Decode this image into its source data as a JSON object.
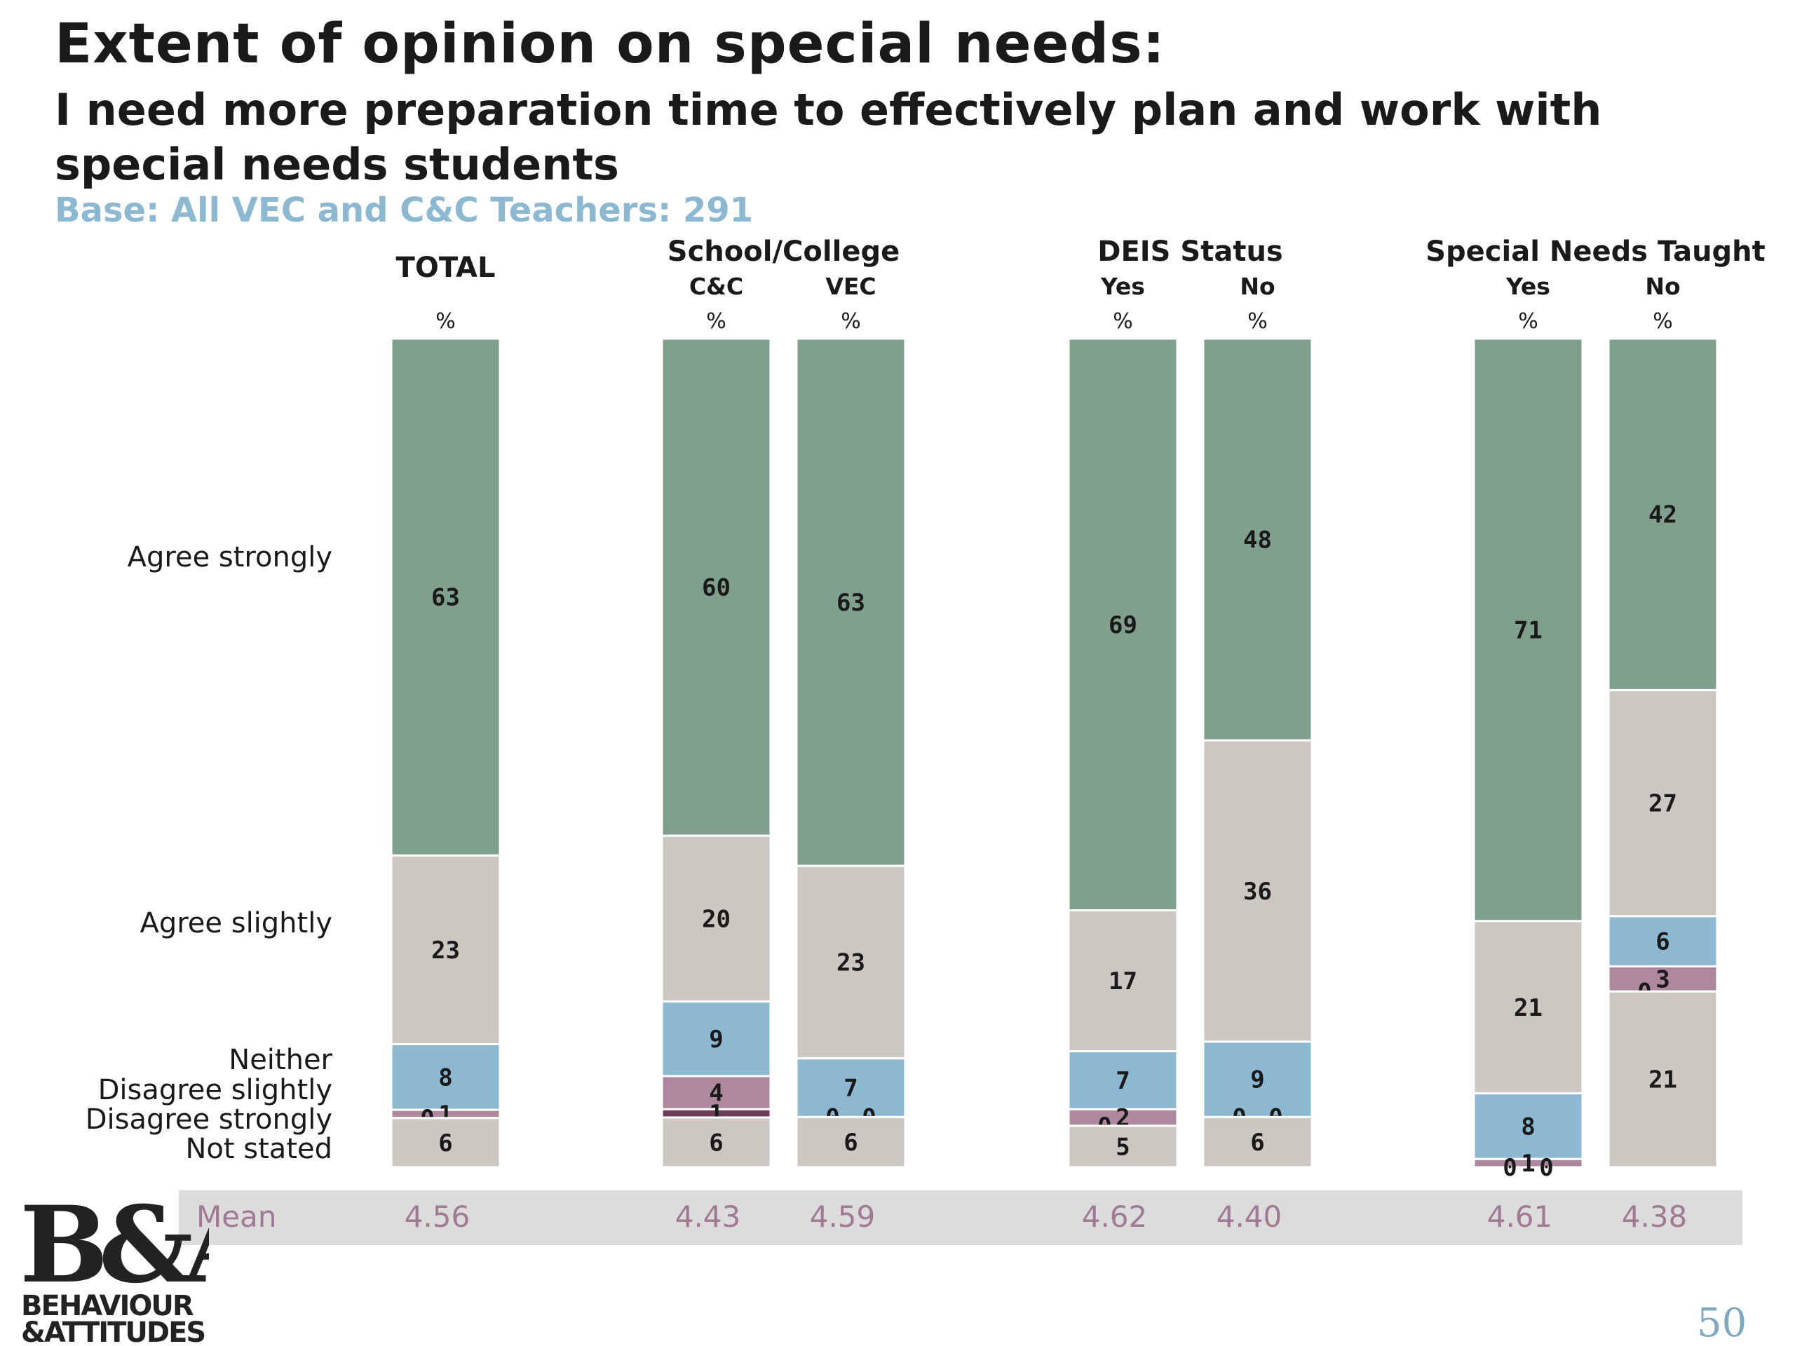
{
  "title": "Extent of opinion on special needs:",
  "subtitle": "I need more preparation time to effectively plan and work with special needs students",
  "base": "Base: All VEC and C&C Teachers: 291",
  "page_number": "50",
  "logo": {
    "line1": "B&A",
    "line2": "BEHAVIOUR",
    "line3": "&ATTITUDES"
  },
  "colors": {
    "agree_strongly": "#80a08d",
    "agree_slightly": "#cdc7c2",
    "neither": "#8db8d1",
    "disagree_slightly": "#ad889e",
    "disagree_strongly": "#6f3d5a",
    "not_stated": "#cdc7c2",
    "mean_band": "#dcdcdc",
    "mean_text": "#a07a93"
  },
  "chart_data": {
    "type": "bar",
    "stacked": true,
    "unit": "%",
    "group_headers": [
      {
        "label": "TOTAL",
        "columns": [
          0
        ]
      },
      {
        "label": "School/College",
        "columns": [
          1,
          2
        ]
      },
      {
        "label": "DEIS Status",
        "columns": [
          3,
          4
        ]
      },
      {
        "label": "Special Needs Taught",
        "columns": [
          5,
          6
        ]
      }
    ],
    "categories": [
      "",
      "C&C",
      "VEC",
      "Yes",
      "No",
      "Yes",
      "No"
    ],
    "percent_label": "%",
    "series": [
      {
        "name": "Agree strongly",
        "key": "agree_strongly",
        "values": [
          63,
          60,
          63,
          69,
          48,
          71,
          42
        ]
      },
      {
        "name": "Agree slightly",
        "key": "agree_slightly",
        "values": [
          23,
          20,
          23,
          17,
          36,
          21,
          27
        ]
      },
      {
        "name": "Neither",
        "key": "neither",
        "values": [
          8,
          9,
          7,
          7,
          9,
          8,
          6
        ]
      },
      {
        "name": "Disagree slightly",
        "key": "disagree_slightly",
        "values": [
          1,
          4,
          0,
          2,
          0,
          1,
          3
        ]
      },
      {
        "name": "Disagree strongly",
        "key": "disagree_strongly",
        "values": [
          0,
          1,
          0,
          0,
          0,
          0,
          0
        ]
      },
      {
        "name": "Not stated",
        "key": "not_stated",
        "values": [
          6,
          6,
          6,
          5,
          6,
          0,
          21
        ]
      }
    ],
    "mean": {
      "label": "Mean",
      "values": [
        "4.56",
        "4.43",
        "4.59",
        "4.62",
        "4.40",
        "4.61",
        "4.38"
      ]
    }
  }
}
